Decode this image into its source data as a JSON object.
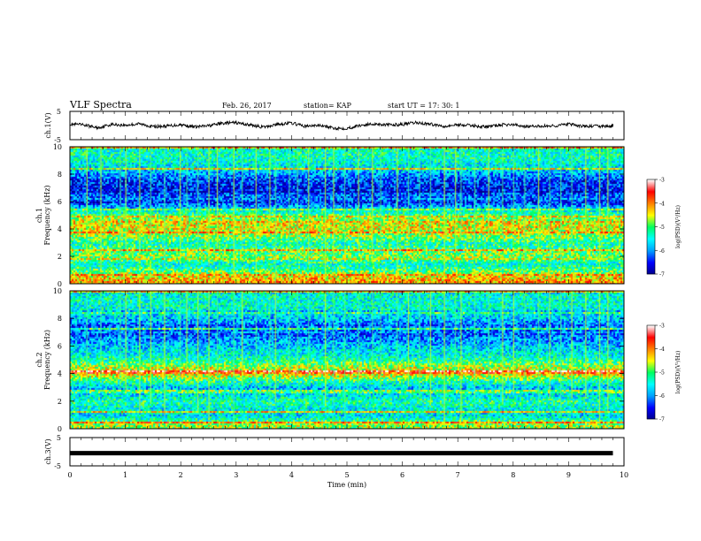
{
  "header": {
    "title": "VLF Spectra",
    "date": "Feb. 26, 2017",
    "station": "station= KAP",
    "start": "start  UT  =   17: 30: 1"
  },
  "colors": {
    "background": "#ffffff",
    "axis": "#000000",
    "trace": "#000000",
    "colormap": [
      "#00008b",
      "#0000ff",
      "#00a0ff",
      "#00ffff",
      "#00ff60",
      "#ffff00",
      "#ff8000",
      "#ff0000",
      "#ffffff"
    ]
  },
  "chart_data": [
    {
      "type": "line",
      "name": "ch1-waveform",
      "ylabel": "ch.1(V)",
      "ylim": [
        -5,
        5
      ],
      "yticks": [
        "5",
        "-5"
      ],
      "xlim": [
        0,
        10
      ],
      "x": [
        0,
        0.25,
        0.5,
        0.75,
        1.0,
        1.25,
        1.5,
        1.75,
        2.0,
        2.25,
        2.5,
        2.75,
        3.0,
        3.25,
        3.5,
        3.75,
        4.0,
        4.25,
        4.5,
        4.75,
        5.0,
        5.25,
        5.5,
        5.75,
        6.0,
        6.25,
        6.5,
        6.75,
        7.0,
        7.25,
        7.5,
        7.75,
        8.0,
        8.25,
        8.5,
        8.75,
        9.0,
        9.25,
        9.5,
        9.75,
        9.8
      ],
      "y": [
        0.5,
        0.2,
        -0.8,
        0.4,
        0.1,
        0.6,
        -0.4,
        -0.2,
        0.3,
        -0.5,
        -0.1,
        0.8,
        1.0,
        0.2,
        -0.6,
        0.5,
        0.9,
        -0.3,
        0.1,
        -0.9,
        -1.0,
        0.1,
        0.6,
        0.2,
        0.4,
        1.0,
        0.5,
        -0.2,
        0.3,
        0.0,
        -0.5,
        0.2,
        0.3,
        -0.4,
        -0.2,
        -0.1,
        0.5,
        -0.3,
        -0.2,
        -0.4,
        0.0
      ]
    },
    {
      "type": "heatmap",
      "name": "ch1-spectrogram",
      "ylabel": "ch.1 Frequency (kHz)",
      "ylim": [
        0,
        10
      ],
      "yticks": [
        "0",
        "2",
        "4",
        "6",
        "8",
        "10"
      ],
      "xlim": [
        0,
        10
      ],
      "colorbar": {
        "label": "log(PSD)(V²/Hz)",
        "range": [
          -7,
          -3
        ],
        "ticks": [
          "-3",
          "-4",
          "-5",
          "-6",
          "-7"
        ]
      },
      "band_profile": {
        "freq_khz": [
          0,
          0.5,
          1,
          1.5,
          2,
          2.5,
          3,
          3.5,
          4,
          4.5,
          5,
          5.5,
          6,
          6.5,
          7,
          7.5,
          8,
          8.5,
          9,
          9.5,
          10
        ],
        "mean_log_psd": [
          -4.0,
          -4.3,
          -5.0,
          -5.4,
          -4.8,
          -5.0,
          -5.3,
          -4.8,
          -4.5,
          -4.4,
          -5.0,
          -5.6,
          -6.4,
          -6.2,
          -6.5,
          -6.4,
          -6.0,
          -5.6,
          -5.4,
          -5.3,
          -5.4
        ]
      },
      "spike_times_min": [
        0.3,
        0.55,
        0.9,
        1.0,
        1.25,
        1.45,
        1.7,
        1.98,
        2.1,
        2.3,
        2.5,
        2.65,
        2.95,
        3.1,
        3.35,
        3.6,
        3.7,
        3.95,
        4.1,
        4.3,
        4.6,
        4.75,
        4.95,
        5.2,
        5.45,
        5.6,
        5.9,
        6.1,
        6.3,
        6.5,
        6.75,
        6.95,
        7.05,
        7.3,
        7.55,
        7.8,
        8.0,
        8.2,
        8.45,
        8.65,
        8.85,
        9.05,
        9.3,
        9.55,
        9.7
      ]
    },
    {
      "type": "heatmap",
      "name": "ch2-spectrogram",
      "ylabel": "ch.2 Frequency (kHz)",
      "ylim": [
        0,
        10
      ],
      "yticks": [
        "0",
        "2",
        "4",
        "6",
        "8",
        "10"
      ],
      "xlim": [
        0,
        10
      ],
      "colorbar": {
        "label": "log(PSD)(V²/Hz)",
        "range": [
          -7,
          -3
        ],
        "ticks": [
          "-3",
          "-4",
          "-5",
          "-6",
          "-7"
        ]
      },
      "band_profile": {
        "freq_khz": [
          0,
          0.5,
          1,
          1.5,
          2,
          2.5,
          3,
          3.5,
          4,
          4.5,
          5,
          5.5,
          6,
          6.5,
          7,
          7.5,
          8,
          8.5,
          9,
          9.5,
          10
        ],
        "mean_log_psd": [
          -4.3,
          -5.0,
          -5.6,
          -5.5,
          -5.2,
          -5.6,
          -5.8,
          -5.2,
          -4.4,
          -4.6,
          -5.2,
          -5.5,
          -5.7,
          -6.0,
          -6.3,
          -6.1,
          -5.8,
          -5.5,
          -5.4,
          -5.4,
          -5.5
        ]
      },
      "spike_times_min": [
        0.3,
        0.55,
        0.9,
        1.0,
        1.25,
        1.45,
        1.7,
        1.98,
        2.1,
        2.3,
        2.5,
        2.65,
        2.95,
        3.1,
        3.35,
        3.6,
        3.7,
        3.95,
        4.1,
        4.3,
        4.6,
        4.75,
        4.95,
        5.2,
        5.45,
        5.6,
        5.9,
        6.1,
        6.3,
        6.5,
        6.75,
        6.95,
        7.05,
        7.3,
        7.55,
        7.8,
        8.0,
        8.2,
        8.45,
        8.65,
        8.85,
        9.05,
        9.3,
        9.55,
        9.7
      ]
    },
    {
      "type": "line",
      "name": "ch3-waveform",
      "ylabel": "ch.3(V)",
      "ylim": [
        -5,
        5
      ],
      "yticks": [
        "5",
        "-5"
      ],
      "xlim": [
        0,
        10
      ],
      "xlabel": "Time  (min)",
      "xticks": [
        "0",
        "1",
        "2",
        "3",
        "4",
        "5",
        "6",
        "7",
        "8",
        "9",
        "10"
      ],
      "x": [
        0,
        9.8
      ],
      "y": [
        -0.5,
        -0.5
      ]
    }
  ]
}
